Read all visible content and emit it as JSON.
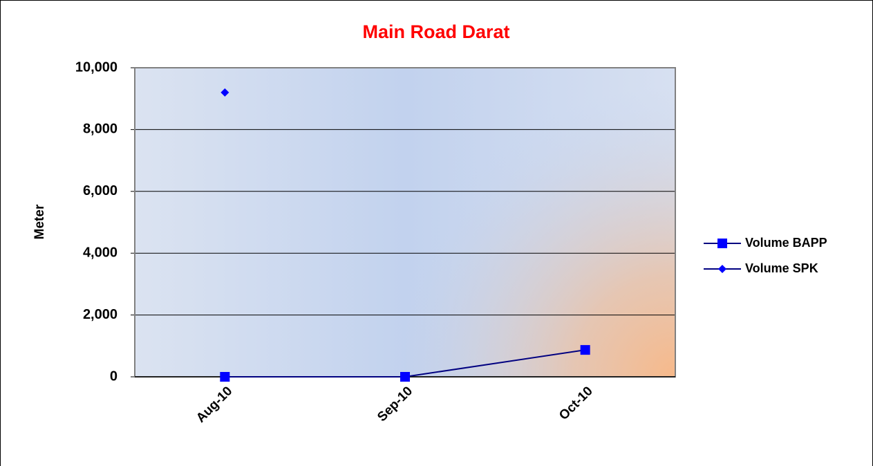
{
  "chart_data": {
    "type": "line",
    "title": "Main Road Darat",
    "y_label": "Meter",
    "categories": [
      "Aug-10",
      "Sep-10",
      "Oct-10"
    ],
    "series": [
      {
        "name": "Volume BAPP",
        "color": "#000080",
        "marker_color": "#0000ff",
        "marker": "square",
        "values": [
          0,
          0,
          870
        ]
      },
      {
        "name": "Volume SPK",
        "color": "#000080",
        "marker_color": "#0000ff",
        "marker": "diamond",
        "values": [
          9200,
          null,
          null
        ]
      }
    ],
    "ylim": [
      0,
      10000
    ],
    "yticks": [
      0,
      {
        "value": 2000,
        "label": "2,000"
      },
      {
        "value": 4000,
        "label": "4,000"
      },
      {
        "value": 6000,
        "label": "6,000"
      },
      {
        "value": 8000,
        "label": "8,000"
      },
      {
        "value": 10000,
        "label": "10,000"
      }
    ],
    "grid": true,
    "legend": "right"
  }
}
